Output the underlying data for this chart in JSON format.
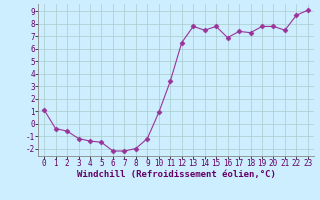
{
  "x": [
    0,
    1,
    2,
    3,
    4,
    5,
    6,
    7,
    8,
    9,
    10,
    11,
    12,
    13,
    14,
    15,
    16,
    17,
    18,
    19,
    20,
    21,
    22,
    23
  ],
  "y": [
    1.1,
    -0.4,
    -0.6,
    -1.2,
    -1.4,
    -1.5,
    -2.2,
    -2.2,
    -2.0,
    -1.2,
    0.9,
    3.4,
    6.5,
    7.8,
    7.5,
    7.8,
    6.9,
    7.4,
    7.3,
    7.8,
    7.8,
    7.5,
    8.7,
    9.1
  ],
  "line_color": "#993399",
  "marker": "D",
  "marker_size": 2.5,
  "bg_color": "#cceeff",
  "grid_color": "#aacccc",
  "xlabel": "Windchill (Refroidissement éolien,°C)",
  "ylim": [
    -2.6,
    9.6
  ],
  "xlim": [
    -0.5,
    23.5
  ],
  "yticks": [
    -2,
    -1,
    0,
    1,
    2,
    3,
    4,
    5,
    6,
    7,
    8,
    9
  ],
  "xticks": [
    0,
    1,
    2,
    3,
    4,
    5,
    6,
    7,
    8,
    9,
    10,
    11,
    12,
    13,
    14,
    15,
    16,
    17,
    18,
    19,
    20,
    21,
    22,
    23
  ],
  "tick_label_fontsize": 5.5,
  "xlabel_fontsize": 6.5
}
